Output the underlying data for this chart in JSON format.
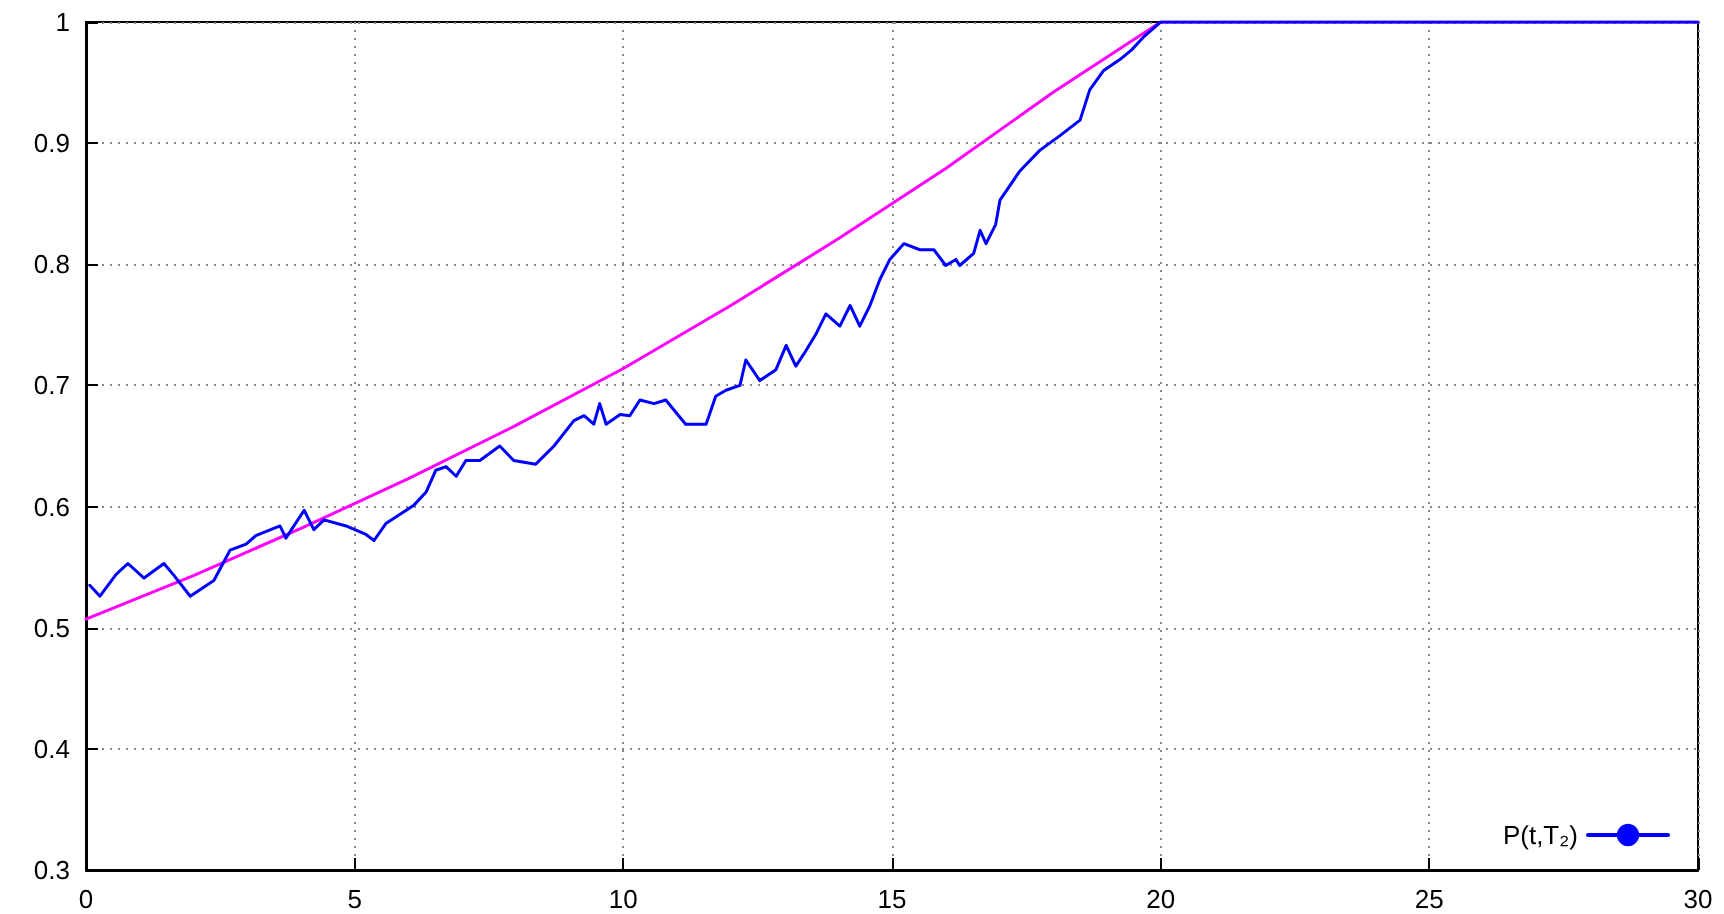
{
  "chart_data": {
    "type": "line",
    "series": [
      {
        "name": "P(t,T₂)",
        "color": "#0000ff",
        "x": [
          0.07,
          0.26,
          0.56,
          0.78,
          1.08,
          1.45,
          1.64,
          1.94,
          2.38,
          2.68,
          2.98,
          3.16,
          3.61,
          3.72,
          4.06,
          4.24,
          4.43,
          4.84,
          5.21,
          5.36,
          5.58,
          6.1,
          6.33,
          6.51,
          6.7,
          6.89,
          7.07,
          7.33,
          7.7,
          7.96,
          8.37,
          8.71,
          9.08,
          9.27,
          9.45,
          9.56,
          9.68,
          9.94,
          10.12,
          10.31,
          10.57,
          10.79,
          11.16,
          11.54,
          11.72,
          11.91,
          12.17,
          12.28,
          12.54,
          12.84,
          13.03,
          13.21,
          13.36,
          13.58,
          13.77,
          14.03,
          14.22,
          14.4,
          14.59,
          14.77,
          14.96,
          15.22,
          15.52,
          15.78,
          16.0,
          16.19,
          16.26,
          16.52,
          16.64,
          16.75,
          16.93,
          17.01,
          17.38,
          17.75,
          18.12,
          18.5,
          18.68,
          18.94,
          19.24,
          19.46,
          19.69,
          20,
          30
        ],
        "values": [
          0.535,
          0.526,
          0.544,
          0.553,
          0.541,
          0.553,
          0.543,
          0.526,
          0.539,
          0.564,
          0.569,
          0.576,
          0.584,
          0.574,
          0.597,
          0.581,
          0.589,
          0.584,
          0.577,
          0.572,
          0.586,
          0.601,
          0.612,
          0.63,
          0.633,
          0.625,
          0.638,
          0.638,
          0.65,
          0.638,
          0.635,
          0.65,
          0.671,
          0.675,
          0.668,
          0.685,
          0.668,
          0.676,
          0.675,
          0.688,
          0.685,
          0.688,
          0.668,
          0.668,
          0.691,
          0.696,
          0.7,
          0.721,
          0.704,
          0.713,
          0.733,
          0.716,
          0.726,
          0.742,
          0.759,
          0.749,
          0.766,
          0.749,
          0.766,
          0.787,
          0.804,
          0.817,
          0.812,
          0.812,
          0.799,
          0.804,
          0.799,
          0.809,
          0.828,
          0.817,
          0.833,
          0.853,
          0.877,
          0.894,
          0.906,
          0.919,
          0.944,
          0.96,
          0.969,
          0.977,
          0.988,
          1,
          1
        ]
      },
      {
        "color": "#ff00ff",
        "x": [
          0,
          2,
          4,
          6,
          8,
          10,
          12,
          14,
          16,
          18,
          20,
          30
        ],
        "values": [
          0.507,
          0.543,
          0.582,
          0.623,
          0.667,
          0.714,
          0.766,
          0.821,
          0.879,
          0.942,
          1,
          1
        ]
      }
    ],
    "xlim": [
      0,
      30
    ],
    "xticks": [
      0,
      5,
      10,
      15,
      20,
      25,
      30
    ],
    "ylim": [
      0.3,
      1
    ],
    "yticks": [
      0.3,
      0.4,
      0.5,
      0.6,
      0.7,
      0.8,
      0.9,
      1
    ],
    "grid": true,
    "legend": "bottom right",
    "marker": "none",
    "line_style": "solid"
  }
}
